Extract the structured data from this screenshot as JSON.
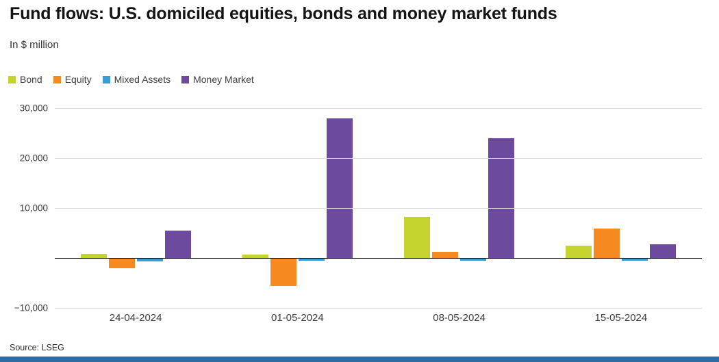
{
  "header": {
    "title": "Fund flows: U.S. domiciled equities, bonds and money market funds",
    "subtitle": "In $ million"
  },
  "chart_data": {
    "type": "bar",
    "title": "Fund flows: U.S. domiciled equities, bonds and money market funds",
    "subtitle": "In $ million",
    "categories": [
      "24-04-2024",
      "01-05-2024",
      "08-05-2024",
      "15-05-2024"
    ],
    "series": [
      {
        "name": "Bond",
        "color": "#c5d32e",
        "values": [
          800,
          700,
          8200,
          2500
        ]
      },
      {
        "name": "Equity",
        "color": "#f6891f",
        "values": [
          -2100,
          -5600,
          1200,
          5900
        ]
      },
      {
        "name": "Mixed Assets",
        "color": "#3d9bd3",
        "values": [
          -700,
          -600,
          -500,
          -600
        ]
      },
      {
        "name": "Money Market",
        "color": "#6c4b9e",
        "values": [
          5500,
          28000,
          24000,
          2800
        ]
      }
    ],
    "ylim": [
      -10000,
      30000
    ],
    "yticks": [
      {
        "value": 30000,
        "label": "30,000"
      },
      {
        "value": 20000,
        "label": "20,000"
      },
      {
        "value": 10000,
        "label": "10,000"
      },
      {
        "value": 0,
        "label": ""
      },
      {
        "value": -10000,
        "label": "−10,000"
      }
    ],
    "grid": true,
    "legend_position": "top",
    "xlabel": "",
    "ylabel": ""
  },
  "footer": {
    "source": "Source: LSEG"
  },
  "colors": {
    "accent_bar": "#2d6da5",
    "zero_line": "#1a1a1a",
    "gridline": "#dcdcdc"
  }
}
